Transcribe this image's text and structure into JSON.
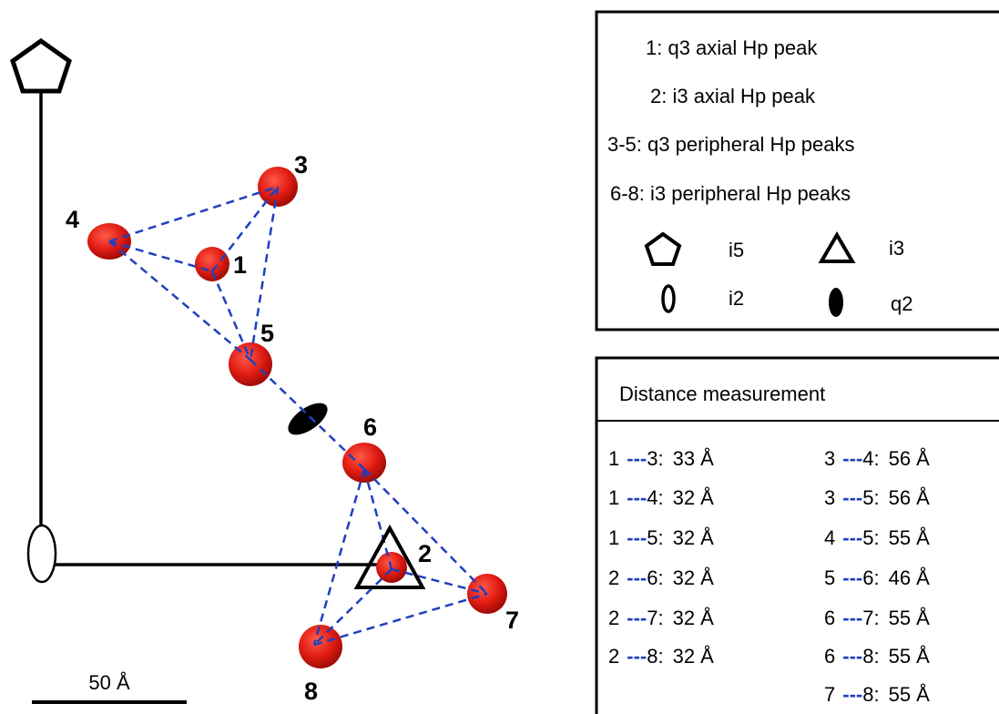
{
  "diagram": {
    "peak_labels": [
      "1",
      "2",
      "3",
      "4",
      "5",
      "6",
      "7",
      "8"
    ],
    "scale_bar": "50 Å"
  },
  "legend": {
    "entries": [
      "1: q3 axial Hp peak",
      "2: i3 axial Hp peak",
      "3-5: q3 peripheral Hp peaks",
      "6-8: i3 peripheral Hp peaks"
    ],
    "symbols": [
      "i5",
      "i3",
      "i2",
      "q2"
    ]
  },
  "distances": {
    "title": "Distance measurement",
    "connector": "---",
    "left": [
      {
        "from": "1",
        "to": "3:",
        "distance": "33 Å"
      },
      {
        "from": "1",
        "to": "4:",
        "distance": "32 Å"
      },
      {
        "from": "1",
        "to": "5:",
        "distance": "32 Å"
      },
      {
        "from": "2",
        "to": "6:",
        "distance": "32 Å"
      },
      {
        "from": "2",
        "to": "7:",
        "distance": "32 Å"
      },
      {
        "from": "2",
        "to": "8:",
        "distance": "32 Å"
      }
    ],
    "right": [
      {
        "from": "3",
        "to": "4:",
        "distance": "56 Å"
      },
      {
        "from": "3",
        "to": "5:",
        "distance": "56 Å"
      },
      {
        "from": "4",
        "to": "5:",
        "distance": "55 Å"
      },
      {
        "from": "5",
        "to": "6:",
        "distance": "46 Å"
      },
      {
        "from": "6",
        "to": "7:",
        "distance": "55 Å"
      },
      {
        "from": "6",
        "to": "8:",
        "distance": "55 Å"
      },
      {
        "from": "7",
        "to": "8:",
        "distance": "55 Å"
      }
    ]
  }
}
